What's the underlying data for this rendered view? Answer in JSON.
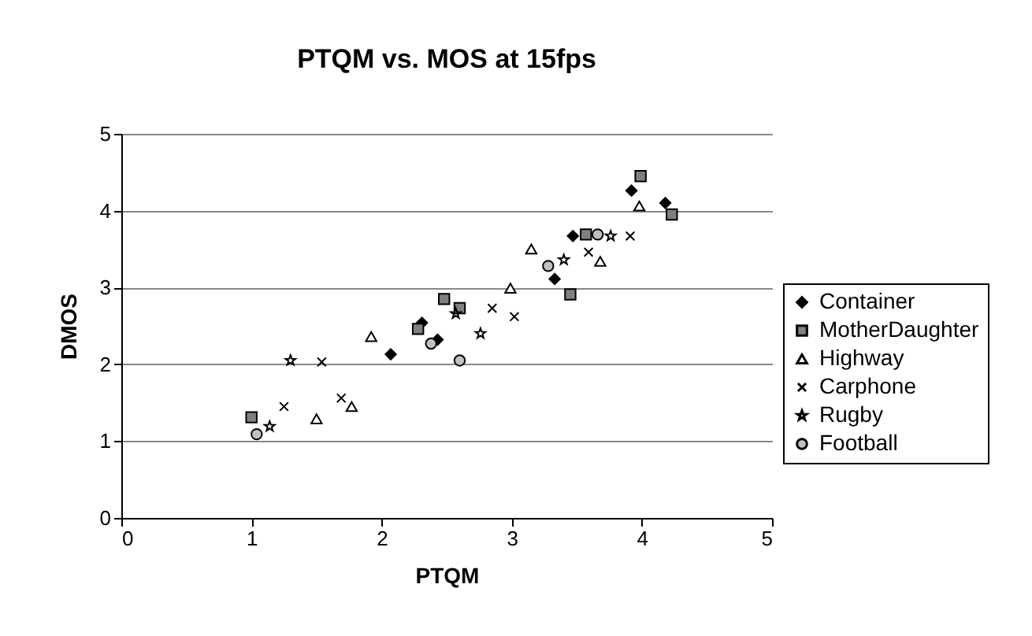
{
  "chart_data": {
    "type": "scatter",
    "title": "PTQM vs. MOS at 15fps",
    "xlabel": "PTQM",
    "ylabel": "DMOS",
    "xlim": [
      0,
      5
    ],
    "xticks": [
      0,
      1,
      2,
      3,
      4,
      5
    ],
    "ylim": [
      0,
      5
    ],
    "yticks": [
      0,
      1,
      2,
      3,
      4,
      5
    ],
    "grid": "y",
    "legend": "right",
    "series": [
      {
        "name": "Container",
        "color": "#000000",
        "marker": "diamond",
        "x": [
          2.07,
          2.31,
          2.43,
          3.33,
          3.47,
          3.92,
          4.18
        ],
        "values": [
          2.13,
          2.54,
          2.32,
          3.11,
          3.67,
          4.26,
          4.1
        ]
      },
      {
        "name": "MotherDaughter",
        "color": "#808080",
        "marker": "square",
        "x": [
          1.0,
          2.28,
          2.48,
          2.6,
          3.45,
          3.57,
          3.99,
          4.23
        ],
        "values": [
          1.31,
          2.46,
          2.85,
          2.73,
          2.91,
          3.69,
          4.45,
          3.95
        ]
      },
      {
        "name": "Highway",
        "color": "#ffffff",
        "marker": "triangle",
        "x": [
          1.5,
          1.77,
          1.92,
          2.99,
          3.15,
          3.68,
          3.98
        ],
        "values": [
          1.29,
          1.45,
          2.36,
          2.99,
          3.5,
          3.34,
          4.06
        ]
      },
      {
        "name": "Carphone",
        "color": "#000000",
        "marker": "cross",
        "x": [
          1.25,
          1.54,
          1.69,
          2.85,
          3.02,
          3.59,
          3.91
        ],
        "values": [
          1.45,
          2.03,
          1.56,
          2.73,
          2.62,
          3.46,
          3.67
        ]
      },
      {
        "name": "Rugby",
        "color": "#000000",
        "marker": "star",
        "x": [
          1.14,
          1.3,
          2.57,
          2.76,
          3.4,
          3.76
        ],
        "values": [
          1.19,
          2.05,
          2.66,
          2.4,
          3.36,
          3.67
        ]
      },
      {
        "name": "Football",
        "color": "#c0c0c0",
        "marker": "circle",
        "x": [
          1.04,
          2.38,
          2.6,
          3.28,
          3.66
        ],
        "values": [
          1.09,
          2.27,
          2.05,
          3.28,
          3.69
        ]
      }
    ]
  }
}
